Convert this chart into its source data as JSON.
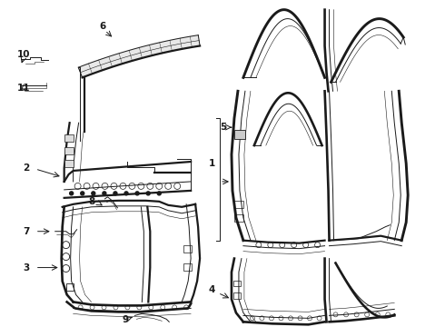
{
  "bg_color": "#ffffff",
  "line_color": "#1a1a1a",
  "figsize": [
    4.9,
    3.6
  ],
  "dpi": 100,
  "lw_outer": 1.6,
  "lw_inner": 0.7,
  "lw_thin": 0.4
}
